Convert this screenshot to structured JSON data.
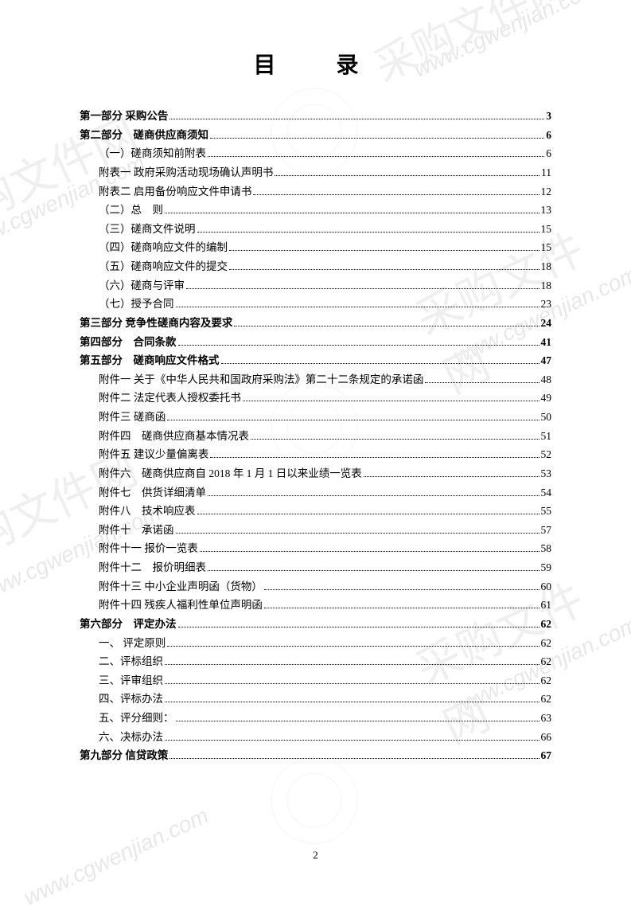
{
  "title": "目　录",
  "page_number": "2",
  "watermark_text": "www.cgwenjian.com",
  "watermark_cn": "采购文件网",
  "entries": [
    {
      "label": "第一部分  采购公告",
      "page": "3",
      "bold": true,
      "indent": 0
    },
    {
      "label": "第二部分　磋商供应商须知",
      "page": "6",
      "bold": true,
      "indent": 0
    },
    {
      "label": "（一）磋商须知前附表",
      "page": "6",
      "bold": false,
      "indent": 1
    },
    {
      "label": "附表一  政府采购活动现场确认声明书",
      "page": "11",
      "bold": false,
      "indent": 1
    },
    {
      "label": "附表二  启用备份响应文件申请书",
      "page": "12",
      "bold": false,
      "indent": 1
    },
    {
      "label": "（二）总　则",
      "page": "13",
      "bold": false,
      "indent": 1
    },
    {
      "label": "（三）磋商文件说明",
      "page": "15",
      "bold": false,
      "indent": 1
    },
    {
      "label": "（四）磋商响应文件的编制",
      "page": "15",
      "bold": false,
      "indent": 1
    },
    {
      "label": "（五）磋商响应文件的提交",
      "page": "18",
      "bold": false,
      "indent": 1
    },
    {
      "label": "（六）磋商与评审",
      "page": "18",
      "bold": false,
      "indent": 1
    },
    {
      "label": "（七）授予合同",
      "page": "23",
      "bold": false,
      "indent": 1
    },
    {
      "label": "第三部分  竞争性磋商内容及要求",
      "page": "24",
      "bold": true,
      "indent": 0
    },
    {
      "label": "第四部分　合同条款",
      "page": "41",
      "bold": true,
      "indent": 0
    },
    {
      "label": "第五部分　磋商响应文件格式",
      "page": "47",
      "bold": true,
      "indent": 0
    },
    {
      "label": "附件一  关于《中华人民共和国政府采购法》第二十二条规定的承诺函",
      "page": "48",
      "bold": false,
      "indent": 1
    },
    {
      "label": "附件二  法定代表人授权委托书",
      "page": "49",
      "bold": false,
      "indent": 1
    },
    {
      "label": "附件三  磋商函",
      "page": "50",
      "bold": false,
      "indent": 1
    },
    {
      "label": "附件四　磋商供应商基本情况表",
      "page": "51",
      "bold": false,
      "indent": 1
    },
    {
      "label": "附件五  建议少量偏离表",
      "page": "52",
      "bold": false,
      "indent": 1
    },
    {
      "label": "附件六　磋商供应商自 2018 年 1 月 1 日以来业绩一览表",
      "page": "53",
      "bold": false,
      "indent": 1
    },
    {
      "label": "附件七　供货详细清单",
      "page": "54",
      "bold": false,
      "indent": 1
    },
    {
      "label": "附件八　技术响应表",
      "page": "55",
      "bold": false,
      "indent": 1
    },
    {
      "label": "附件十　承诺函",
      "page": "57",
      "bold": false,
      "indent": 1
    },
    {
      "label": "附件十一  报价一览表",
      "page": "58",
      "bold": false,
      "indent": 1
    },
    {
      "label": "附件十二　报价明细表",
      "page": "59",
      "bold": false,
      "indent": 1
    },
    {
      "label": "附件十三  中小企业声明函（货物）",
      "page": "60",
      "bold": false,
      "indent": 1
    },
    {
      "label": "附件十四  残疾人福利性单位声明函",
      "page": "61",
      "bold": false,
      "indent": 1
    },
    {
      "label": "第六部分　评定办法",
      "page": "62",
      "bold": true,
      "indent": 0
    },
    {
      "label": "一、 评定原则",
      "page": "62",
      "bold": false,
      "indent": 1
    },
    {
      "label": "二、评标组织",
      "page": "62",
      "bold": false,
      "indent": 1
    },
    {
      "label": "三、评审组织",
      "page": "62",
      "bold": false,
      "indent": 1
    },
    {
      "label": "四、评标办法",
      "page": "62",
      "bold": false,
      "indent": 1
    },
    {
      "label": "五、评分细则：",
      "page": "63",
      "bold": false,
      "indent": 1
    },
    {
      "label": "六、决标办法",
      "page": "66",
      "bold": false,
      "indent": 1
    },
    {
      "label": "第九部分  信贷政策",
      "page": "67",
      "bold": true,
      "indent": 0
    }
  ]
}
